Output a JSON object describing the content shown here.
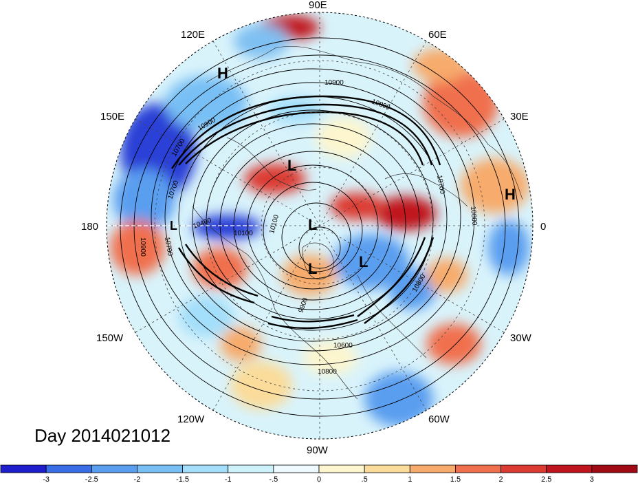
{
  "date_label": "Day 2014021012",
  "longitude_labels": {
    "e90": "90E",
    "e60": "60E",
    "e30": "30E",
    "zero": "0",
    "w30": "30W",
    "w60": "60W",
    "w90": "90W",
    "w120": "120W",
    "w150": "150W",
    "e180": "180",
    "e150": "150E",
    "e120": "120E"
  },
  "pressure_systems": {
    "h_east_asia": "H",
    "h_atlantic": "H",
    "l_north_canada": "L",
    "l_pole": "L",
    "l_greenland_a": "L",
    "l_greenland_b": "L",
    "l_siberia": "L"
  },
  "contour_labels": {
    "c1": "10900",
    "c2": "10800",
    "c3": "10900",
    "c4": "10700",
    "c5": "10700",
    "c6": "10400",
    "c7": "10100",
    "c8": "10100",
    "c9": "10900",
    "c10": "10700",
    "c11": "10700",
    "c12": "10800",
    "c13": "10800",
    "c14": "9900",
    "c15": "10600",
    "c16": "10800"
  },
  "colorbar": {
    "ticks": [
      "-3",
      "-2.5",
      "-2",
      "-1.5",
      "-1",
      "-.5",
      "0",
      ".5",
      "1",
      "1.5",
      "2",
      "2.5",
      "3"
    ],
    "colors": [
      "#1e1ecd",
      "#3a6ee6",
      "#5a9ef0",
      "#78bff5",
      "#a3defa",
      "#cdf2fc",
      "#eefaff",
      "#fdf6cf",
      "#fbdc9a",
      "#f7ab6c",
      "#f0704e",
      "#dc3b32",
      "#c0151f",
      "#a00a14"
    ]
  }
}
